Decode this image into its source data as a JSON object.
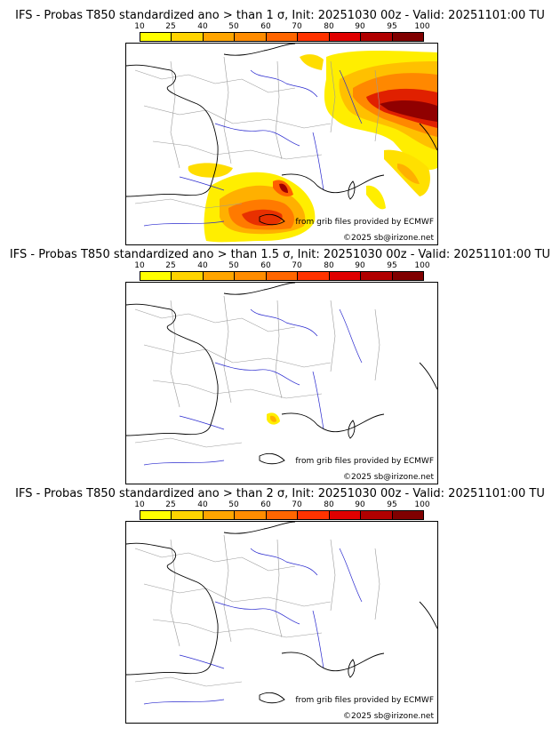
{
  "colorbar": {
    "labels": [
      "10",
      "25",
      "40",
      "50",
      "60",
      "70",
      "80",
      "90",
      "95",
      "100"
    ],
    "colors": [
      "#ffff00",
      "#ffd400",
      "#ffa500",
      "#ff8c00",
      "#ff6600",
      "#ff3300",
      "#e00000",
      "#b00000",
      "#800000"
    ]
  },
  "credits": {
    "source": "from grib files provided by ECMWF",
    "copyright": "©2025 sb@irizone.net"
  },
  "panels": [
    {
      "title": "IFS - Probas T850  standardized ano > than 1 σ, Init: 20251030 00z - Valid: 20251101:00 TU",
      "threshold_sigma": 1
    },
    {
      "title": "IFS - Probas T850  standardized ano > than 1.5 σ, Init: 20251030 00z - Valid: 20251101:00 TU",
      "threshold_sigma": 1.5
    },
    {
      "title": "IFS - Probas T850  standardized ano > than 2 σ, Init: 20251030 00z - Valid: 20251101:00 TU",
      "threshold_sigma": 2
    }
  ]
}
